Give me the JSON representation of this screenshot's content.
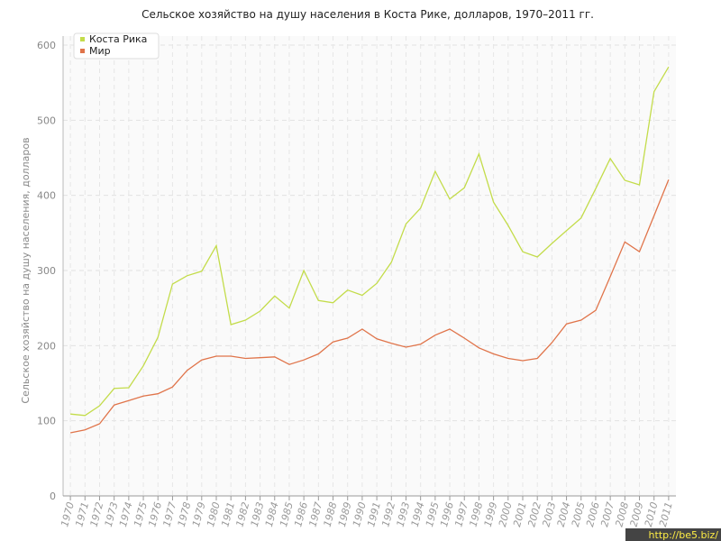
{
  "chart_data": {
    "type": "line",
    "title": "Сельское хозяйство на душу населения в Коста Рике, долларов, 1970–2011 гг.",
    "y_label": "Сельское хозяйство на душу населения, долларов",
    "categories": [
      "1970",
      "1971",
      "1972",
      "1973",
      "1974",
      "1975",
      "1976",
      "1977",
      "1978",
      "1979",
      "1980",
      "1981",
      "1982",
      "1983",
      "1984",
      "1985",
      "1986",
      "1987",
      "1988",
      "1989",
      "1990",
      "1991",
      "1992",
      "1993",
      "1994",
      "1995",
      "1996",
      "1997",
      "1998",
      "1999",
      "2000",
      "2001",
      "2002",
      "2003",
      "2004",
      "2005",
      "2006",
      "2007",
      "2008",
      "2009",
      "2010",
      "2011"
    ],
    "series": [
      {
        "name": "Коста Рика",
        "color": "#c3dc4a",
        "values": [
          109,
          107,
          120,
          143,
          144,
          173,
          211,
          282,
          293,
          299,
          333,
          228,
          234,
          246,
          266,
          250,
          300,
          260,
          257,
          274,
          267,
          283,
          311,
          362,
          383,
          432,
          395,
          410,
          455,
          391,
          360,
          325,
          318,
          336,
          353,
          370,
          409,
          449,
          420,
          414,
          538,
          571
        ]
      },
      {
        "name": "Мир",
        "color": "#e0744a",
        "values": [
          84,
          88,
          96,
          121,
          127,
          133,
          136,
          145,
          167,
          181,
          186,
          186,
          183,
          184,
          185,
          175,
          181,
          189,
          205,
          210,
          222,
          209,
          203,
          198,
          202,
          214,
          222,
          210,
          197,
          189,
          183,
          180,
          183,
          204,
          229,
          234,
          247,
          292,
          338,
          325,
          373,
          421
        ]
      }
    ],
    "ylim": [
      0,
      600
    ],
    "yticks": [
      0,
      100,
      200,
      300,
      400,
      500,
      600
    ],
    "grid": true,
    "legend": "top-left",
    "watermark": "http://be5.biz/"
  }
}
